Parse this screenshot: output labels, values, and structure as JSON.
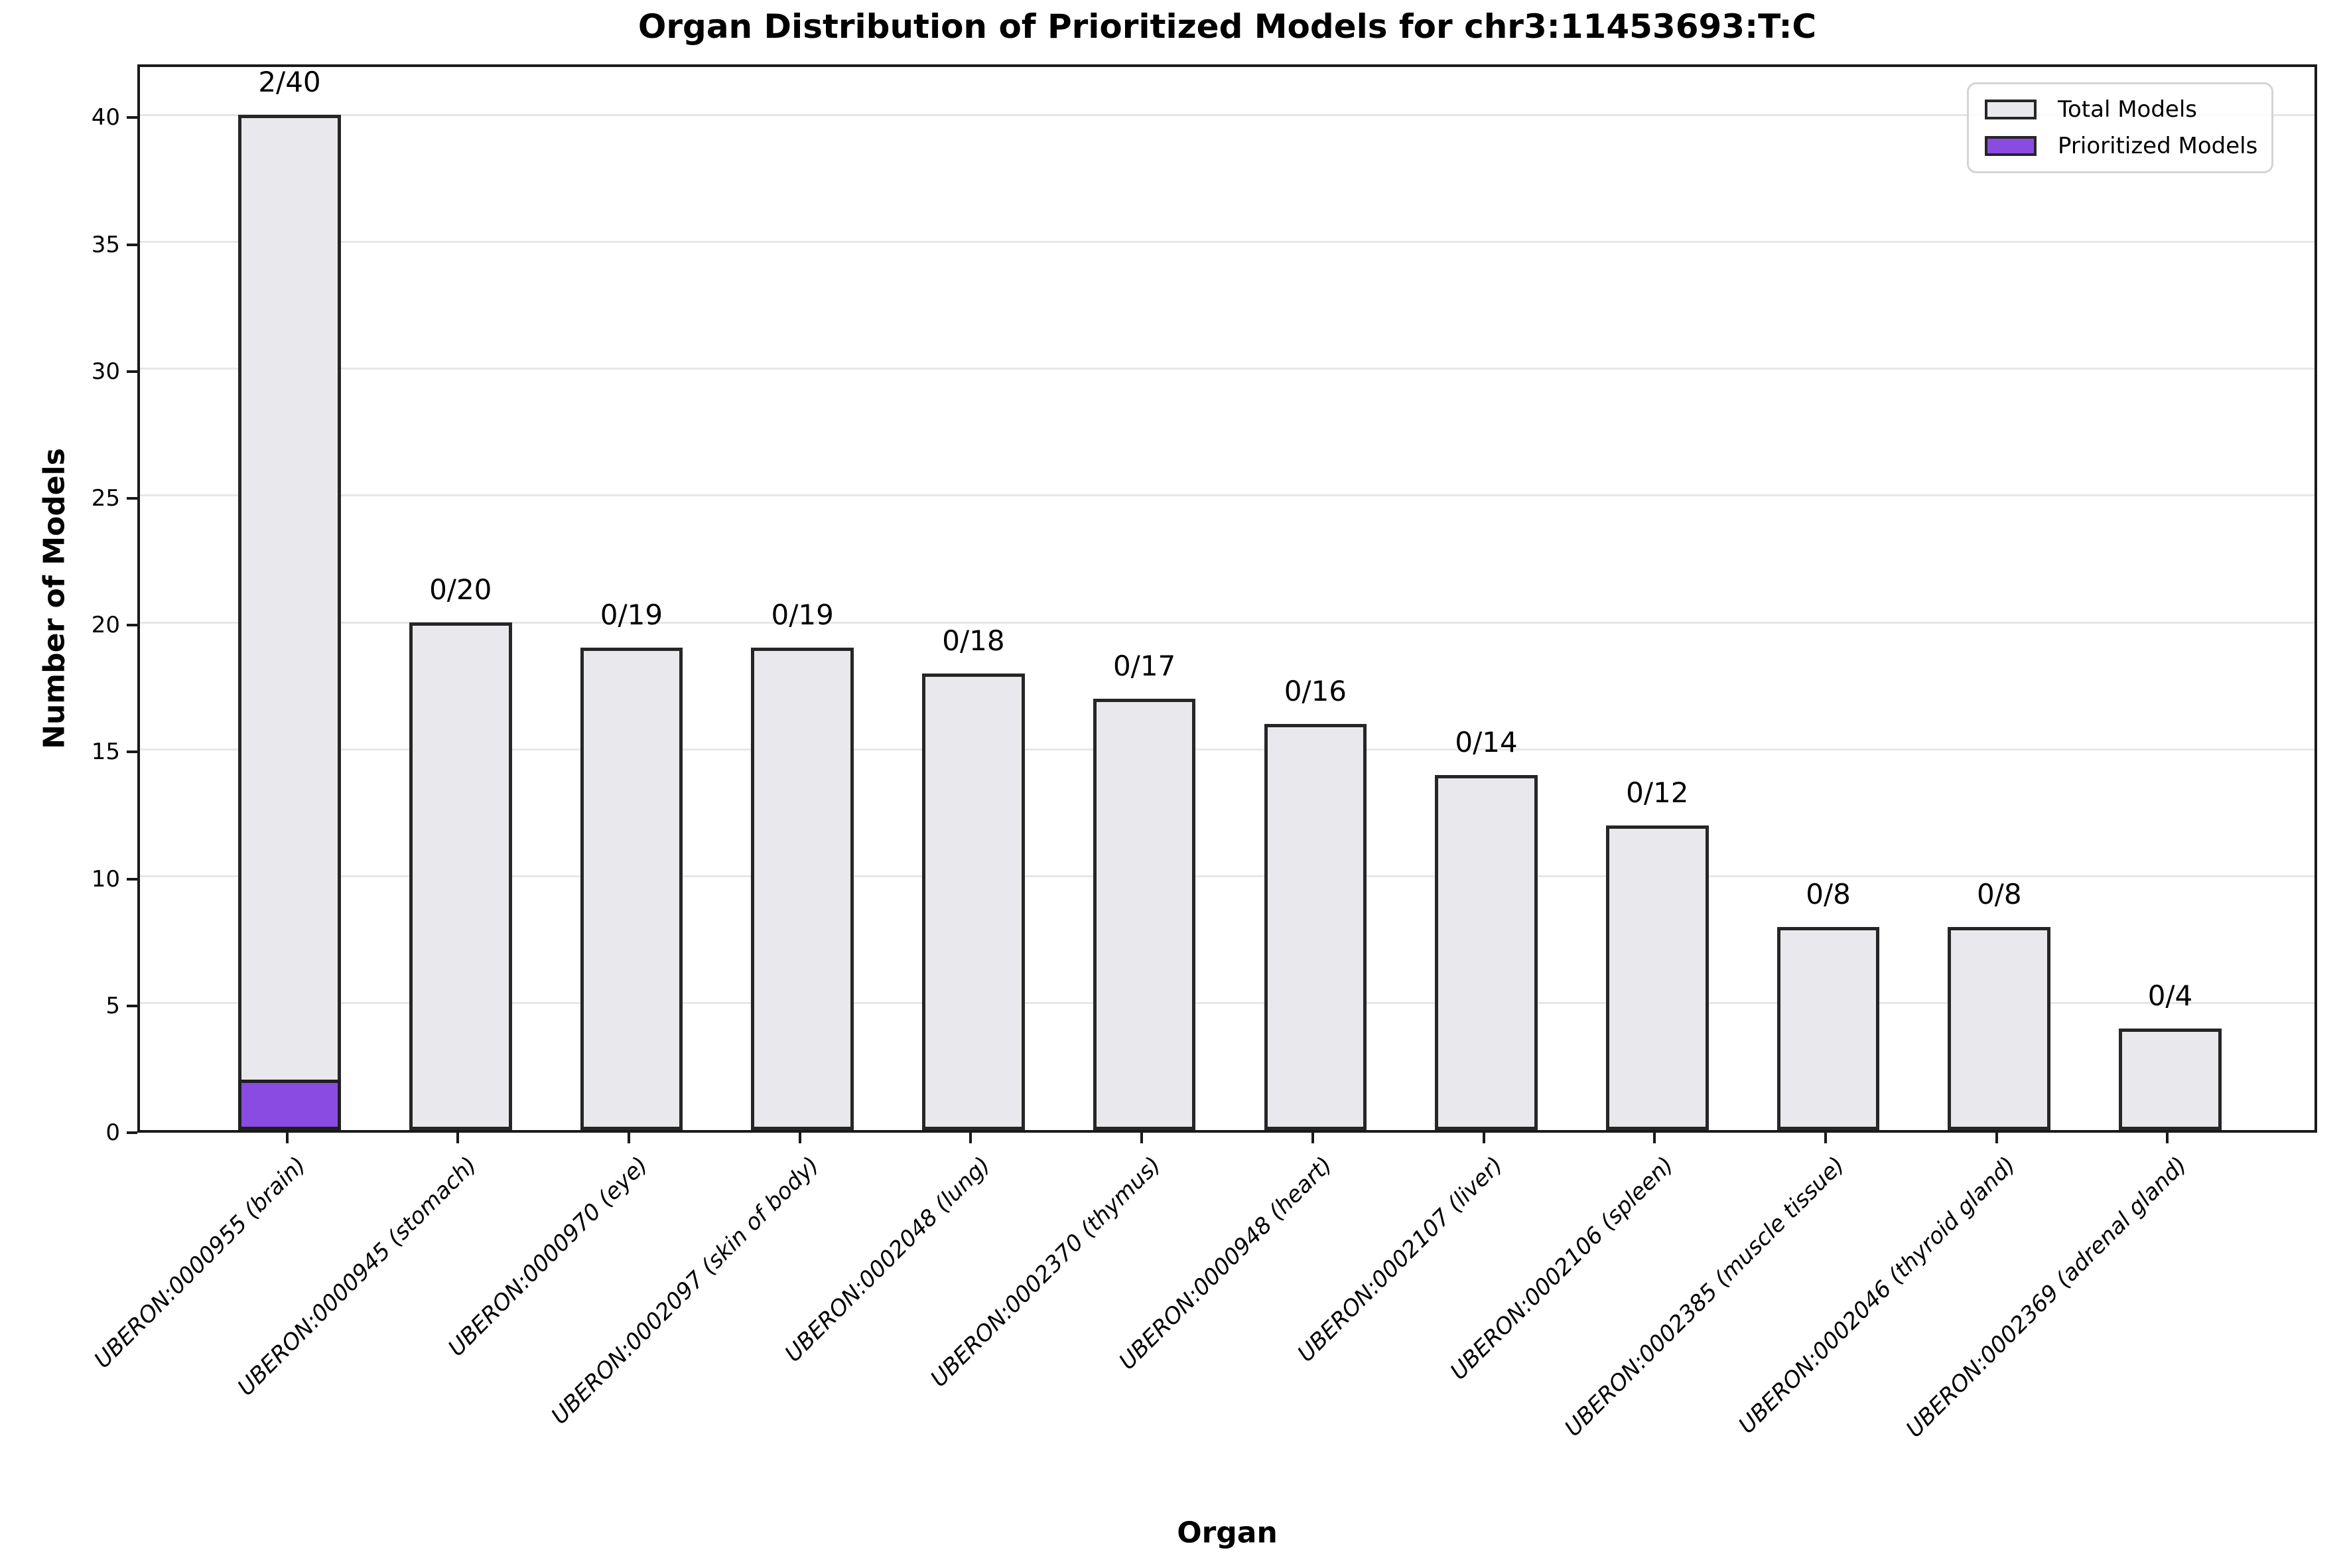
{
  "title": "Organ Distribution of Prioritized Models for chr3:11453693:T:C",
  "chart_data": {
    "type": "bar",
    "title": "Organ Distribution of Prioritized Models for chr3:11453693:T:C",
    "xlabel": "Organ",
    "ylabel": "Number of Models",
    "categories": [
      "UBERON:0000955 (brain)",
      "UBERON:0000945 (stomach)",
      "UBERON:0000970 (eye)",
      "UBERON:0002097 (skin of body)",
      "UBERON:0002048 (lung)",
      "UBERON:0002370 (thymus)",
      "UBERON:0000948 (heart)",
      "UBERON:0002107 (liver)",
      "UBERON:0002106 (spleen)",
      "UBERON:0002385 (muscle tissue)",
      "UBERON:0002046 (thyroid gland)",
      "UBERON:0002369 (adrenal gland)"
    ],
    "series": [
      {
        "name": "Total Models",
        "values": [
          40,
          20,
          19,
          19,
          18,
          17,
          16,
          14,
          12,
          8,
          8,
          4
        ],
        "fill": "#e9e9ed",
        "edge": "#262626"
      },
      {
        "name": "Prioritized Models",
        "values": [
          2,
          0,
          0,
          0,
          0,
          0,
          0,
          0,
          0,
          0,
          0,
          0
        ],
        "fill": "#8a4be2",
        "edge": "#1f1f1f"
      }
    ],
    "bar_labels": [
      "2/40",
      "0/20",
      "0/19",
      "0/19",
      "0/18",
      "0/17",
      "0/16",
      "0/14",
      "0/12",
      "0/8",
      "0/8",
      "0/4"
    ],
    "yticks": [
      0,
      5,
      10,
      15,
      20,
      25,
      30,
      35,
      40
    ],
    "ylim": [
      0,
      42.1
    ],
    "grid": true,
    "grid_color": "#e7e7e7",
    "legend_position": "upper right",
    "background": "#ffffff"
  }
}
